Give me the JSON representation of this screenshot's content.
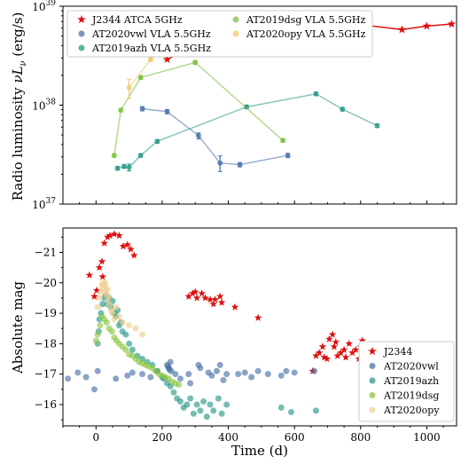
{
  "figure": {
    "x_axis_label": "Time (d)",
    "x_ticks": [
      0,
      200,
      400,
      600,
      800,
      1000
    ]
  },
  "chart_data": [
    {
      "type": "line",
      "ylabel_main": "Radio luminosity ",
      "ylabel_math": "νL",
      "ylabel_sub": "ν",
      "ylabel_units": " (erg/s)",
      "y_scale": "log",
      "xlim": [
        -100,
        1090
      ],
      "ylim": [
        1e+37,
        1e+39
      ],
      "y_tick_labels": [
        {
          "value": 1e+37,
          "base": "10",
          "exp": "37"
        },
        {
          "value": 1e+38,
          "base": "10",
          "exp": "38"
        },
        {
          "value": 1e+39,
          "base": "10",
          "exp": "39"
        }
      ],
      "legend_position": "top-left",
      "series": [
        {
          "name": "J2344 ATCA 5GHz",
          "color": "#dd1111",
          "marker": "star",
          "x": [
            215,
            275,
            385,
            440,
            510,
            580,
            725,
            925,
            1000,
            1075
          ],
          "y": [
            2.9e+38,
            3.6e+38,
            4.2e+38,
            5.5e+38,
            8.2e+38,
            5.9e+38,
            7e+38,
            5.8e+38,
            6.3e+38,
            6.6e+38
          ],
          "yerr_rel": [
            0,
            0,
            0,
            0,
            0,
            0,
            0,
            0,
            0,
            0
          ]
        },
        {
          "name": "AT2020vwl VLA 5.5GHz",
          "color": "#4a73a8",
          "marker": "circle",
          "x": [
            140,
            215,
            310,
            375,
            435,
            580
          ],
          "y": [
            9.2e+37,
            8.6e+37,
            4.9e+37,
            2.6e+37,
            2.5e+37,
            3.1e+37
          ],
          "yerr_rel": [
            0.05,
            0.05,
            0.07,
            0.18,
            0.05,
            0.05
          ]
        },
        {
          "name": "AT2019azh VLA 5.5GHz",
          "color": "#2a9a8a",
          "marker": "circle",
          "x": [
            65,
            85,
            100,
            135,
            185,
            455,
            665,
            745,
            850
          ],
          "y": [
            2.3e+37,
            2.4e+37,
            2.35e+37,
            3.1e+37,
            4.3e+37,
            9.6e+37,
            1.3e+38,
            9.1e+37,
            6.2e+37
          ],
          "yerr_rel": [
            0.04,
            0.04,
            0.08,
            0.04,
            0.04,
            0.04,
            0.04,
            0.04,
            0.04
          ]
        },
        {
          "name": "AT2019dsg VLA 5.5GHz",
          "color": "#7cbf40",
          "marker": "circle",
          "x": [
            55,
            75,
            135,
            300,
            565
          ],
          "y": [
            3.1e+37,
            8.9e+37,
            1.9e+38,
            2.7e+38,
            4.4e+37
          ],
          "yerr_rel": [
            0.04,
            0.04,
            0.04,
            0.04,
            0.04
          ]
        },
        {
          "name": "AT2020opy VLA 5.5GHz",
          "color": "#f0c868",
          "marker": "circle",
          "x": [
            100,
            165,
            335
          ],
          "y": [
            1.5e+38,
            2.9e+38,
            8.1e+38
          ],
          "yerr_rel": [
            0.22,
            0.04,
            0.04
          ]
        }
      ]
    },
    {
      "type": "scatter",
      "ylabel": "Absolute mag",
      "xlim": [
        -100,
        1090
      ],
      "ylim": [
        -15.3,
        -21.8
      ],
      "y_ticks": [
        -16,
        -17,
        -18,
        -19,
        -20,
        -21
      ],
      "legend_position": "bottom-right",
      "series": [
        {
          "name": "J2344",
          "color": "#dd1111",
          "marker": "star",
          "points": [
            [
              25,
              -21.3
            ],
            [
              35,
              -21.5
            ],
            [
              42,
              -21.55
            ],
            [
              55,
              -21.6
            ],
            [
              70,
              -21.55
            ],
            [
              82,
              -21.2
            ],
            [
              95,
              -21.25
            ],
            [
              105,
              -21.1
            ],
            [
              115,
              -20.9
            ],
            [
              10,
              -20.5
            ],
            [
              18,
              -20.7
            ],
            [
              20,
              -20.2
            ],
            [
              -20,
              -20.25
            ],
            [
              -5,
              -19.55
            ],
            [
              2,
              -19.75
            ],
            [
              280,
              -19.55
            ],
            [
              292,
              -19.65
            ],
            [
              300,
              -19.7
            ],
            [
              305,
              -19.5
            ],
            [
              320,
              -19.65
            ],
            [
              330,
              -19.5
            ],
            [
              345,
              -19.45
            ],
            [
              355,
              -19.3
            ],
            [
              360,
              -19.45
            ],
            [
              375,
              -19.55
            ],
            [
              380,
              -19.35
            ],
            [
              420,
              -19.2
            ],
            [
              490,
              -18.85
            ],
            [
              655,
              -17.1
            ],
            [
              665,
              -17.6
            ],
            [
              675,
              -17.7
            ],
            [
              685,
              -17.9
            ],
            [
              690,
              -17.55
            ],
            [
              698,
              -17.5
            ],
            [
              705,
              -18.15
            ],
            [
              715,
              -18.3
            ],
            [
              720,
              -17.9
            ],
            [
              725,
              -18.05
            ],
            [
              730,
              -17.6
            ],
            [
              740,
              -17.7
            ],
            [
              750,
              -17.8
            ],
            [
              755,
              -17.55
            ],
            [
              765,
              -18.0
            ],
            [
              775,
              -17.7
            ],
            [
              785,
              -17.8
            ],
            [
              795,
              -17.5
            ],
            [
              800,
              -17.9
            ],
            [
              805,
              -18.1
            ],
            [
              812,
              -17.3
            ],
            [
              820,
              -17.65
            ]
          ]
        },
        {
          "name": "AT2020vwl",
          "color": "#4a73a8",
          "marker": "circle",
          "points": [
            [
              -85,
              -16.85
            ],
            [
              -55,
              -17.05
            ],
            [
              -30,
              -16.9
            ],
            [
              -5,
              -16.5
            ],
            [
              5,
              -17.1
            ],
            [
              60,
              -16.85
            ],
            [
              95,
              -16.95
            ],
            [
              110,
              -17.05
            ],
            [
              140,
              -17.0
            ],
            [
              165,
              -16.9
            ],
            [
              185,
              -17.1
            ],
            [
              205,
              -16.85
            ],
            [
              215,
              -17.3
            ],
            [
              218,
              -17.25
            ],
            [
              220,
              -17.2
            ],
            [
              222,
              -17.15
            ],
            [
              225,
              -17.4
            ],
            [
              227,
              -17.1
            ],
            [
              240,
              -17.0
            ],
            [
              255,
              -16.85
            ],
            [
              280,
              -17.0
            ],
            [
              285,
              -16.7
            ],
            [
              310,
              -17.3
            ],
            [
              315,
              -17.2
            ],
            [
              340,
              -17.05
            ],
            [
              350,
              -16.95
            ],
            [
              365,
              -17.1
            ],
            [
              375,
              -17.3
            ],
            [
              385,
              -16.8
            ],
            [
              395,
              -17.0
            ],
            [
              430,
              -17.0
            ],
            [
              450,
              -17.05
            ],
            [
              470,
              -16.9
            ],
            [
              490,
              -17.1
            ],
            [
              520,
              -17.0
            ],
            [
              560,
              -16.95
            ],
            [
              575,
              -17.1
            ],
            [
              600,
              -17.05
            ],
            [
              660,
              -17.1
            ]
          ]
        },
        {
          "name": "AT2019azh",
          "color": "#2a9a8a",
          "marker": "circle",
          "points": [
            [
              5,
              -18.0
            ],
            [
              8,
              -18.4
            ],
            [
              10,
              -18.8
            ],
            [
              15,
              -19.0
            ],
            [
              20,
              -19.3
            ],
            [
              25,
              -19.5
            ],
            [
              30,
              -19.6
            ],
            [
              35,
              -19.3
            ],
            [
              40,
              -19.5
            ],
            [
              45,
              -19.2
            ],
            [
              50,
              -19.4
            ],
            [
              55,
              -19.0
            ],
            [
              60,
              -18.9
            ],
            [
              65,
              -19.1
            ],
            [
              70,
              -18.6
            ],
            [
              75,
              -18.7
            ],
            [
              80,
              -18.4
            ],
            [
              90,
              -18.3
            ],
            [
              100,
              -18.0
            ],
            [
              110,
              -17.8
            ],
            [
              125,
              -17.6
            ],
            [
              140,
              -17.5
            ],
            [
              155,
              -17.4
            ],
            [
              170,
              -17.3
            ],
            [
              185,
              -17.1
            ],
            [
              200,
              -16.9
            ],
            [
              215,
              -16.7
            ],
            [
              225,
              -16.6
            ],
            [
              235,
              -16.4
            ],
            [
              245,
              -16.2
            ],
            [
              255,
              -16.1
            ],
            [
              265,
              -15.9
            ],
            [
              275,
              -16.0
            ],
            [
              285,
              -16.2
            ],
            [
              295,
              -15.7
            ],
            [
              305,
              -16.0
            ],
            [
              315,
              -15.8
            ],
            [
              325,
              -16.1
            ],
            [
              335,
              -15.6
            ],
            [
              345,
              -16.0
            ],
            [
              355,
              -15.8
            ],
            [
              370,
              -16.2
            ],
            [
              380,
              -15.7
            ],
            [
              395,
              -16.0
            ],
            [
              560,
              -15.9
            ],
            [
              590,
              -15.75
            ],
            [
              665,
              -15.8
            ]
          ]
        },
        {
          "name": "AT2019dsg",
          "color": "#8cc63f",
          "marker": "circle",
          "points": [
            [
              0,
              -18.1
            ],
            [
              5,
              -18.3
            ],
            [
              12,
              -18.6
            ],
            [
              18,
              -18.9
            ],
            [
              25,
              -18.8
            ],
            [
              32,
              -18.7
            ],
            [
              40,
              -18.5
            ],
            [
              48,
              -18.4
            ],
            [
              55,
              -18.2
            ],
            [
              62,
              -18.1
            ],
            [
              70,
              -18.0
            ],
            [
              80,
              -17.9
            ],
            [
              90,
              -17.8
            ],
            [
              100,
              -17.65
            ],
            [
              110,
              -17.6
            ],
            [
              120,
              -17.5
            ],
            [
              130,
              -17.4
            ],
            [
              140,
              -17.35
            ],
            [
              150,
              -17.3
            ],
            [
              160,
              -17.25
            ],
            [
              170,
              -17.2
            ],
            [
              180,
              -17.1
            ],
            [
              190,
              -17.0
            ],
            [
              200,
              -16.95
            ],
            [
              210,
              -16.9
            ],
            [
              220,
              -16.85
            ],
            [
              230,
              -16.75
            ],
            [
              240,
              -16.7
            ],
            [
              250,
              -16.65
            ]
          ]
        },
        {
          "name": "AT2020opy",
          "color": "#f0d090",
          "marker": "circle",
          "points": [
            [
              5,
              -19.2
            ],
            [
              10,
              -19.5
            ],
            [
              15,
              -19.7
            ],
            [
              18,
              -19.9
            ],
            [
              20,
              -20.0
            ],
            [
              22,
              -19.8
            ],
            [
              25,
              -19.9
            ],
            [
              28,
              -20.0
            ],
            [
              30,
              -19.7
            ],
            [
              32,
              -19.6
            ],
            [
              35,
              -19.8
            ],
            [
              38,
              -19.5
            ],
            [
              40,
              -19.3
            ],
            [
              45,
              -19.1
            ],
            [
              50,
              -19.0
            ],
            [
              55,
              -18.8
            ],
            [
              60,
              -19.2
            ],
            [
              70,
              -18.9
            ],
            [
              80,
              -18.7
            ],
            [
              100,
              -18.6
            ],
            [
              120,
              -18.5
            ],
            [
              140,
              -18.3
            ]
          ]
        }
      ]
    }
  ]
}
